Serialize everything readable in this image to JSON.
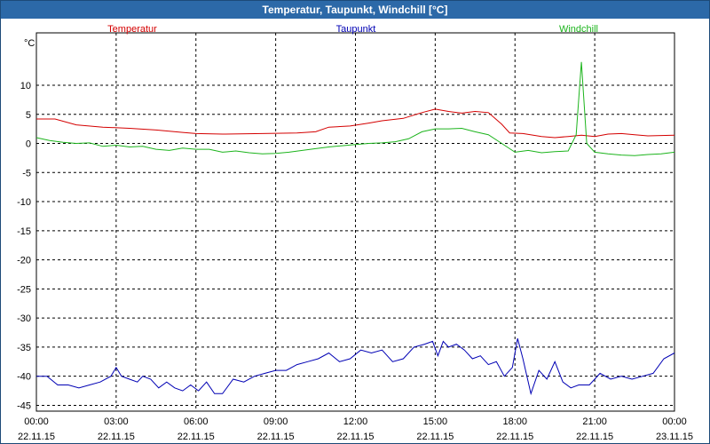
{
  "window": {
    "title": "Temperatur, Taupunkt, Windchill [°C]"
  },
  "colors": {
    "temperatur": "#d40000",
    "taupunkt": "#0000b4",
    "windchill": "#1cb41c",
    "grid": "#000000"
  },
  "chart_data": {
    "type": "line",
    "title": "Temperatur, Taupunkt, Windchill [°C]",
    "ylabel": "°C",
    "ylim": [
      -46,
      19
    ],
    "yticks": [
      10,
      5,
      0,
      -5,
      -10,
      -15,
      -20,
      -25,
      -30,
      -35,
      -40,
      -45
    ],
    "xlim": [
      0,
      24
    ],
    "xticks": [
      {
        "h": 0,
        "time": "00:00",
        "date": "22.11.15"
      },
      {
        "h": 3,
        "time": "03:00",
        "date": "22.11.15"
      },
      {
        "h": 6,
        "time": "06:00",
        "date": "22.11.15"
      },
      {
        "h": 9,
        "time": "09:00",
        "date": "22.11.15"
      },
      {
        "h": 12,
        "time": "12:00",
        "date": "22.11.15"
      },
      {
        "h": 15,
        "time": "15:00",
        "date": "22.11.15"
      },
      {
        "h": 18,
        "time": "18:00",
        "date": "22.11.15"
      },
      {
        "h": 21,
        "time": "21:00",
        "date": "22.11.15"
      },
      {
        "h": 24,
        "time": "00:00",
        "date": "23.11.15"
      }
    ],
    "series": [
      {
        "name": "Temperatur",
        "color": "#d40000",
        "x": [
          0,
          0.7,
          1.5,
          2.5,
          3.5,
          4.5,
          5.5,
          6.0,
          7.0,
          8.5,
          9.8,
          10.5,
          11.0,
          11.8,
          12.5,
          13.0,
          13.8,
          14.5,
          15.0,
          15.5,
          16.0,
          16.5,
          17.0,
          17.5,
          17.8,
          18.3,
          19.0,
          19.5,
          20.0,
          20.5,
          21.0,
          21.5,
          22.0,
          22.5,
          23.0,
          24.0
        ],
        "values": [
          4.2,
          4.2,
          3.2,
          2.8,
          2.6,
          2.3,
          1.9,
          1.7,
          1.6,
          1.7,
          1.8,
          2.0,
          2.8,
          3.0,
          3.5,
          3.9,
          4.3,
          5.3,
          5.9,
          5.5,
          5.2,
          5.5,
          5.3,
          3.3,
          1.8,
          1.7,
          1.2,
          1.0,
          1.2,
          1.4,
          1.2,
          1.6,
          1.7,
          1.5,
          1.3,
          1.4
        ]
      },
      {
        "name": "Taupunkt",
        "color": "#0000b4",
        "x": [
          0,
          0.4,
          0.8,
          1.2,
          1.6,
          2.0,
          2.4,
          2.8,
          3.0,
          3.2,
          3.5,
          3.8,
          4.0,
          4.3,
          4.6,
          4.9,
          5.2,
          5.5,
          5.8,
          6.1,
          6.4,
          6.7,
          7.0,
          7.4,
          7.8,
          8.2,
          8.6,
          9.0,
          9.4,
          9.8,
          10.2,
          10.6,
          11.0,
          11.4,
          11.8,
          12.2,
          12.6,
          13.0,
          13.4,
          13.8,
          14.2,
          14.6,
          14.9,
          15.1,
          15.3,
          15.5,
          15.8,
          16.1,
          16.4,
          16.7,
          17.0,
          17.3,
          17.6,
          17.9,
          18.1,
          18.3,
          18.6,
          18.9,
          19.2,
          19.5,
          19.8,
          20.1,
          20.4,
          20.8,
          21.2,
          21.6,
          22.0,
          22.4,
          22.8,
          23.2,
          23.6,
          24.0
        ],
        "values": [
          -40,
          -40,
          -41.5,
          -41.5,
          -42,
          -41.5,
          -41,
          -40,
          -38.5,
          -40,
          -40.5,
          -41,
          -40,
          -40.5,
          -42,
          -41,
          -42,
          -42.5,
          -41.5,
          -42.5,
          -41,
          -43,
          -43,
          -40.5,
          -41,
          -40,
          -39.5,
          -39,
          -39,
          -38,
          -37.5,
          -37,
          -36,
          -37.5,
          -37,
          -35.5,
          -36,
          -35.5,
          -37.5,
          -37,
          -35,
          -34.5,
          -34,
          -36.5,
          -34,
          -35,
          -34.5,
          -35.5,
          -37,
          -36.5,
          -38,
          -37.5,
          -40,
          -38.5,
          -33.5,
          -37,
          -43,
          -39,
          -40.5,
          -37.5,
          -41,
          -42,
          -41.5,
          -41.5,
          -39.5,
          -40.5,
          -40,
          -40.5,
          -40,
          -39.5,
          -37,
          -36
        ]
      },
      {
        "name": "Windchill",
        "color": "#1cb41c",
        "x": [
          0,
          0.5,
          1.0,
          1.5,
          2.0,
          2.5,
          3.0,
          3.5,
          4.0,
          4.5,
          5.0,
          5.5,
          6.0,
          6.5,
          7.0,
          7.5,
          8.0,
          8.5,
          9.0,
          9.5,
          10.0,
          10.5,
          11.0,
          11.5,
          12.0,
          12.5,
          13.0,
          13.5,
          14.0,
          14.5,
          15.0,
          15.5,
          16.0,
          16.5,
          17.0,
          17.5,
          18.0,
          18.5,
          19.0,
          19.5,
          20.0,
          20.3,
          20.5,
          20.7,
          21.0,
          21.5,
          22.0,
          22.5,
          23.0,
          23.5,
          24.0
        ],
        "values": [
          1.0,
          0.5,
          0.2,
          0.0,
          0.1,
          -0.5,
          -0.3,
          -0.6,
          -0.5,
          -1.0,
          -1.2,
          -0.8,
          -1.0,
          -1.0,
          -1.5,
          -1.3,
          -1.6,
          -1.8,
          -1.7,
          -1.5,
          -1.2,
          -0.9,
          -0.6,
          -0.4,
          -0.2,
          0.0,
          0.1,
          0.3,
          0.8,
          2.0,
          2.5,
          2.5,
          2.6,
          2.0,
          1.5,
          0.0,
          -1.5,
          -1.2,
          -1.6,
          -1.4,
          -1.3,
          1.5,
          14.0,
          0.0,
          -1.5,
          -1.8,
          -2.0,
          -2.1,
          -1.9,
          -1.8,
          -1.5
        ]
      }
    ]
  }
}
